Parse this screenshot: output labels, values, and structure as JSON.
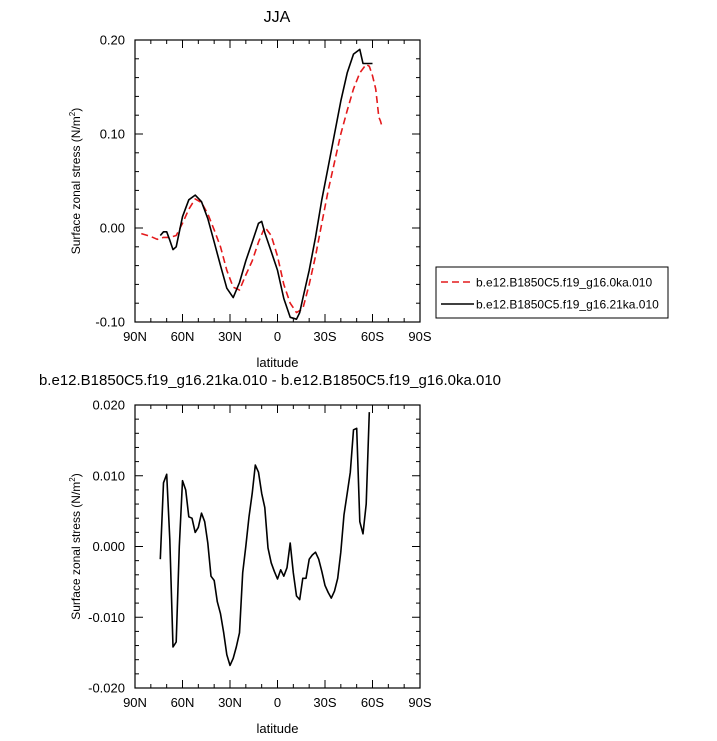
{
  "chart_data": [
    {
      "type": "line",
      "title": "JJA",
      "xlabel": "latitude",
      "ylabel": "Surface zonal stress (N/m",
      "ylabel_sup": "2",
      "ylabel_close": ")",
      "xlim": [
        90,
        -90
      ],
      "ylim": [
        -0.1,
        0.2
      ],
      "xticks": [
        90,
        60,
        30,
        0,
        -30,
        -60,
        -90
      ],
      "xtick_labels": [
        "90N",
        "60N",
        "30N",
        "0",
        "30S",
        "60S",
        "90S"
      ],
      "yticks": [
        -0.1,
        0.0,
        0.1,
        0.2
      ],
      "ytick_labels": [
        "-0.10",
        "0.00",
        "0.10",
        "0.20"
      ],
      "legend": "outside-right",
      "series": [
        {
          "name": "b.e12.B1850C5.f19_g16.0ka.010",
          "color": "#e41a1c",
          "dash": "dashed",
          "x": [
            86,
            80,
            76,
            72,
            68,
            64,
            60,
            56,
            52,
            48,
            44,
            40,
            36,
            32,
            28,
            24,
            20,
            16,
            12,
            8,
            4,
            0,
            -4,
            -8,
            -12,
            -16,
            -20,
            -24,
            -28,
            -32,
            -36,
            -40,
            -44,
            -48,
            -52,
            -56,
            -58,
            -60,
            -62,
            -63,
            -64,
            -65,
            -66
          ],
          "y": [
            -0.006,
            -0.009,
            -0.012,
            -0.01,
            -0.01,
            -0.008,
            0.005,
            0.02,
            0.031,
            0.027,
            0.015,
            -0.002,
            -0.02,
            -0.045,
            -0.063,
            -0.066,
            -0.05,
            -0.035,
            -0.015,
            0.001,
            -0.008,
            -0.03,
            -0.06,
            -0.08,
            -0.09,
            -0.086,
            -0.06,
            -0.03,
            0.005,
            0.04,
            0.07,
            0.1,
            0.125,
            0.148,
            0.165,
            0.174,
            0.172,
            0.162,
            0.148,
            0.133,
            0.118,
            0.114,
            0.108
          ]
        },
        {
          "name": "b.e12.B1850C5.f19_g16.21ka.010",
          "color": "#000000",
          "dash": "solid",
          "x": [
            74,
            72,
            70,
            68,
            66,
            64,
            60,
            56,
            52,
            48,
            44,
            40,
            36,
            32,
            28,
            24,
            20,
            16,
            12,
            10,
            8,
            4,
            0,
            -4,
            -8,
            -12,
            -14,
            -16,
            -20,
            -24,
            -28,
            -32,
            -36,
            -40,
            -44,
            -48,
            -52,
            -54,
            -56,
            -58,
            -60
          ],
          "y": [
            -0.008,
            -0.004,
            -0.004,
            -0.013,
            -0.023,
            -0.02,
            0.012,
            0.03,
            0.035,
            0.028,
            0.01,
            -0.015,
            -0.04,
            -0.064,
            -0.074,
            -0.058,
            -0.035,
            -0.015,
            0.005,
            0.007,
            -0.005,
            -0.025,
            -0.045,
            -0.075,
            -0.095,
            -0.097,
            -0.09,
            -0.075,
            -0.045,
            -0.01,
            0.03,
            0.065,
            0.1,
            0.135,
            0.165,
            0.185,
            0.19,
            0.175,
            0.175,
            0.175,
            0.175
          ]
        }
      ]
    },
    {
      "type": "line",
      "title": "b.e12.B1850C5.f19_g16.21ka.010 - b.e12.B1850C5.f19_g16.0ka.010",
      "xlabel": "latitude",
      "ylabel": "Surface zonal stress (N/m",
      "ylabel_sup": "2",
      "ylabel_close": ")",
      "xlim": [
        90,
        -90
      ],
      "ylim": [
        -0.02,
        0.02
      ],
      "xticks": [
        90,
        60,
        30,
        0,
        -30,
        -60,
        -90
      ],
      "xtick_labels": [
        "90N",
        "60N",
        "30N",
        "0",
        "30S",
        "60S",
        "90S"
      ],
      "yticks": [
        -0.02,
        -0.01,
        0.0,
        0.01,
        0.02
      ],
      "ytick_labels": [
        "-0.020",
        "-0.010",
        "0.000",
        "0.010",
        "0.020"
      ],
      "series": [
        {
          "color": "#000000",
          "dash": "solid",
          "x": [
            74,
            72,
            70,
            68,
            66,
            64,
            62,
            60,
            58,
            56,
            54,
            52,
            50,
            48,
            46,
            44,
            42,
            40,
            38,
            36,
            34,
            32,
            30,
            28,
            26,
            24,
            22,
            20,
            18,
            16,
            14,
            12,
            10,
            8,
            6,
            4,
            2,
            0,
            -2,
            -4,
            -6,
            -8,
            -10,
            -12,
            -14,
            -16,
            -18,
            -20,
            -22,
            -24,
            -26,
            -28,
            -30,
            -32,
            -34,
            -36,
            -38,
            -40,
            -42,
            -44,
            -46,
            -48,
            -50,
            -52,
            -54,
            -56,
            -58
          ],
          "y": [
            -0.0018,
            0.009,
            0.0102,
            0.001,
            -0.0142,
            -0.0135,
            0.0,
            0.0093,
            0.008,
            0.0042,
            0.004,
            0.002,
            0.0027,
            0.0047,
            0.0035,
            0.0005,
            -0.0042,
            -0.0048,
            -0.0078,
            -0.0095,
            -0.0122,
            -0.0153,
            -0.0168,
            -0.0158,
            -0.0142,
            -0.0122,
            -0.0037,
            0.0,
            0.0042,
            0.0075,
            0.0115,
            0.0105,
            0.0075,
            0.0055,
            -0.0002,
            -0.0023,
            -0.0035,
            -0.0046,
            -0.0033,
            -0.0042,
            -0.003,
            0.0005,
            -0.0037,
            -0.007,
            -0.0075,
            -0.0045,
            -0.0045,
            -0.0018,
            -0.0012,
            -0.0008,
            -0.0018,
            -0.0035,
            -0.0055,
            -0.0065,
            -0.0073,
            -0.0063,
            -0.0045,
            -0.0008,
            0.0045,
            0.0075,
            0.0105,
            0.0165,
            0.0167,
            0.0035,
            0.0018,
            0.006,
            0.019
          ]
        }
      ]
    }
  ]
}
